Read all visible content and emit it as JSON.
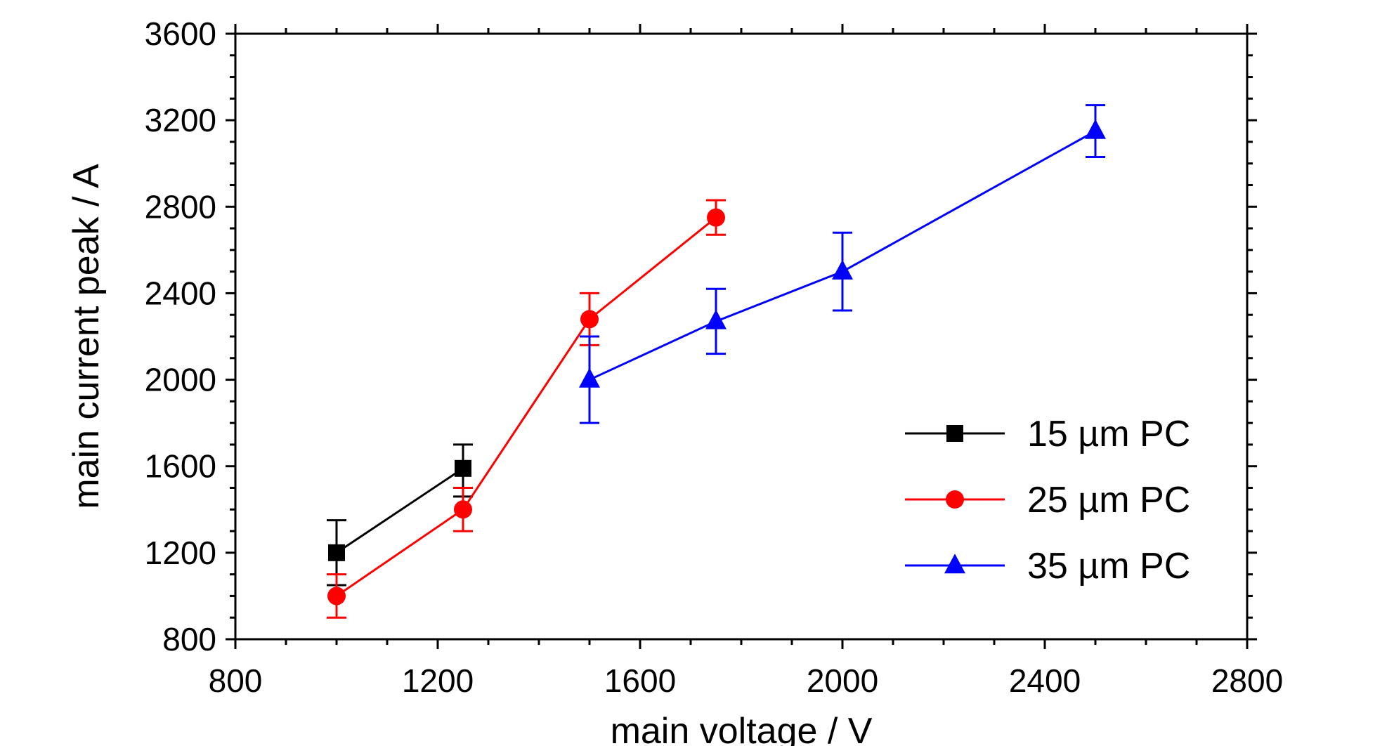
{
  "chart_data": {
    "type": "line",
    "title": "",
    "xlabel": "main voltage / V",
    "ylabel": "main current peak / A",
    "xlim": [
      800,
      2800
    ],
    "ylim": [
      800,
      3600
    ],
    "x_ticks": [
      800,
      1200,
      1600,
      2000,
      2400,
      2800
    ],
    "y_ticks": [
      800,
      1200,
      1600,
      2000,
      2400,
      2800,
      3200,
      3600
    ],
    "grid": false,
    "legend_position": "bottom-right",
    "series": [
      {
        "name": "15 µm PC",
        "color": "#000000",
        "marker": "square",
        "x": [
          1000,
          1250
        ],
        "y": [
          1200,
          1590
        ],
        "err_low": [
          150,
          130
        ],
        "err_high": [
          150,
          110
        ]
      },
      {
        "name": "25 µm PC",
        "color": "#ff0000",
        "marker": "circle",
        "x": [
          1000,
          1250,
          1500,
          1750
        ],
        "y": [
          1000,
          1400,
          2280,
          2750
        ],
        "err_low": [
          100,
          100,
          120,
          80
        ],
        "err_high": [
          100,
          100,
          120,
          80
        ]
      },
      {
        "name": "35 µm PC",
        "color": "#0000ff",
        "marker": "triangle",
        "x": [
          1500,
          1750,
          2000,
          2500
        ],
        "y": [
          2000,
          2270,
          2500,
          3150
        ],
        "err_low": [
          200,
          150,
          180,
          120
        ],
        "err_high": [
          200,
          150,
          180,
          120
        ]
      }
    ]
  }
}
